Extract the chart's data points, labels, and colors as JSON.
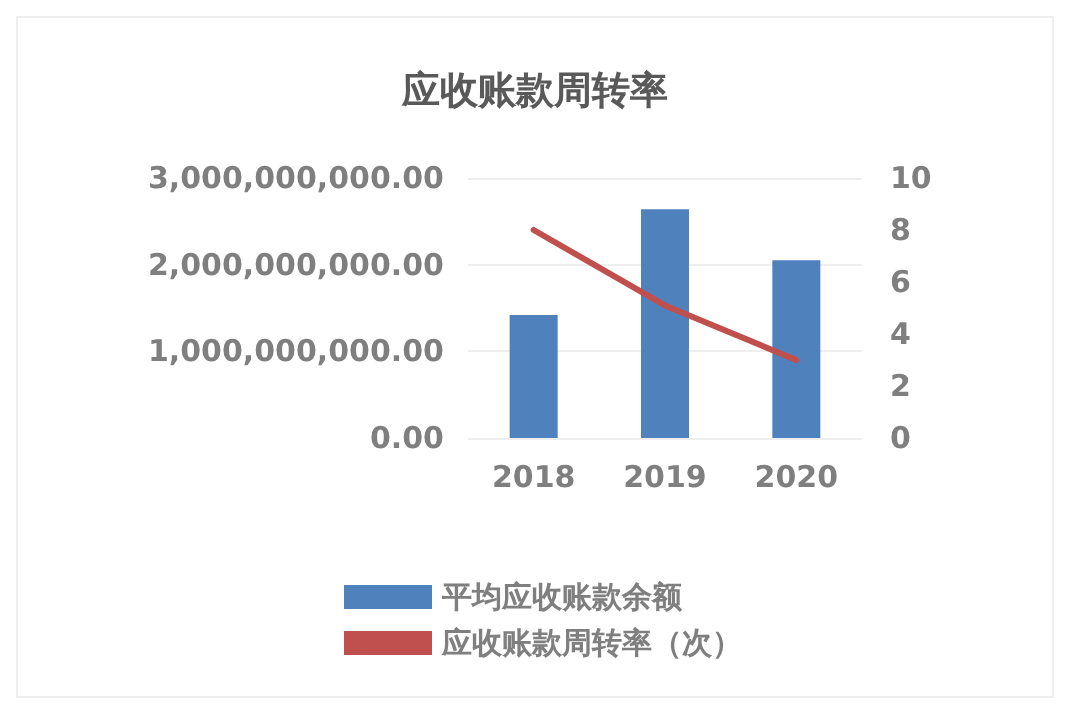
{
  "chart_data": {
    "type": "bar",
    "title": "应收账款周转率",
    "categories": [
      "2018",
      "2019",
      "2020"
    ],
    "series": [
      {
        "name": "平均应收账款余额",
        "color": "#4f81bd",
        "values": [
          1420000000,
          2640000000,
          2050000000
        ]
      },
      {
        "name": "应收账款周转率（次）",
        "type": "line",
        "axis": "y2",
        "color": "#c0504d",
        "values": [
          8.0,
          5.1,
          3.0
        ]
      }
    ],
    "ylim": [
      0,
      3000000000
    ],
    "yticks": [
      {
        "value": 0,
        "label": "0.00"
      },
      {
        "value": 1000000000,
        "label": "1,000,000,000.00"
      },
      {
        "value": 2000000000,
        "label": "2,000,000,000.00"
      },
      {
        "value": 3000000000,
        "label": "3,000,000,000.00"
      }
    ],
    "y2lim": [
      0,
      10
    ],
    "y2ticks": [
      0,
      2,
      4,
      6,
      8,
      10
    ],
    "grid": "y",
    "legend": "bottom",
    "marker": "none",
    "line_style": "solid"
  }
}
